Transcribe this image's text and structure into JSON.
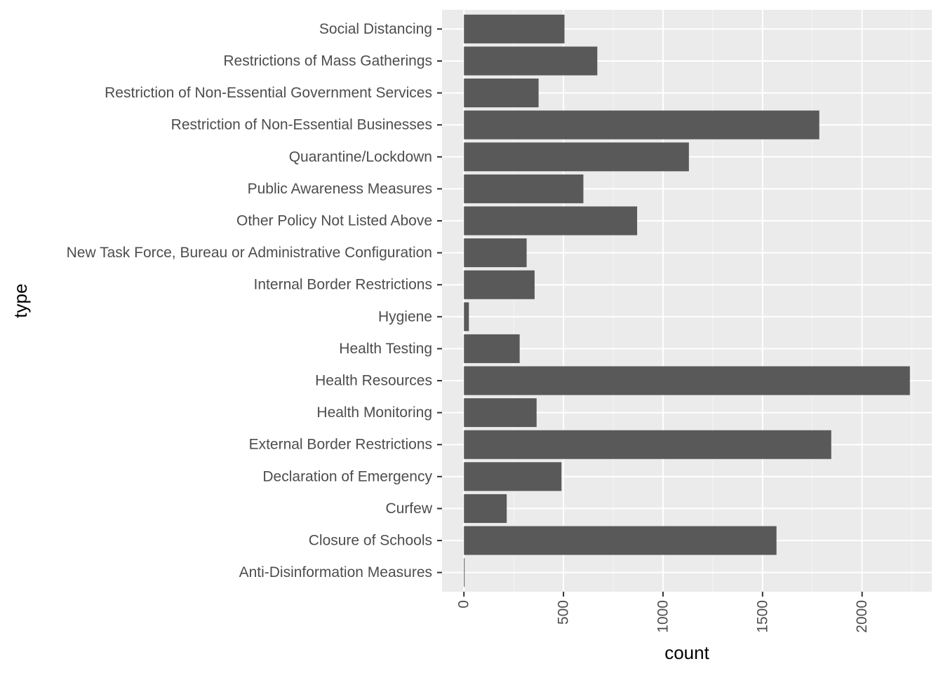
{
  "chart_data": {
    "type": "bar",
    "orientation": "horizontal",
    "xlabel": "count",
    "ylabel": "type",
    "xlim": [
      -110,
      2350
    ],
    "x_ticks": [
      0,
      500,
      1000,
      1500,
      2000
    ],
    "x_tick_labels": [
      "0",
      "500",
      "1000",
      "1500",
      "2000"
    ],
    "grid": true,
    "categories": [
      "Social Distancing",
      "Restrictions of Mass Gatherings",
      "Restriction of Non-Essential Government Services",
      "Restriction of Non-Essential Businesses",
      "Quarantine/Lockdown",
      "Public Awareness Measures",
      "Other Policy Not Listed Above",
      "New Task Force, Bureau or Administrative Configuration",
      "Internal Border Restrictions",
      "Hygiene",
      "Health Testing",
      "Health Resources",
      "Health Monitoring",
      "External Border Restrictions",
      "Declaration of Emergency",
      "Curfew",
      "Closure of Schools",
      "Anti-Disinformation Measures"
    ],
    "values": [
      505,
      670,
      375,
      1785,
      1130,
      600,
      870,
      315,
      355,
      25,
      280,
      2240,
      365,
      1845,
      490,
      215,
      1570,
      3
    ],
    "colors": {
      "bar": "#595959",
      "panel": "#ebebeb",
      "grid_major": "#ffffff",
      "grid_minor": "#f5f5f5"
    }
  }
}
